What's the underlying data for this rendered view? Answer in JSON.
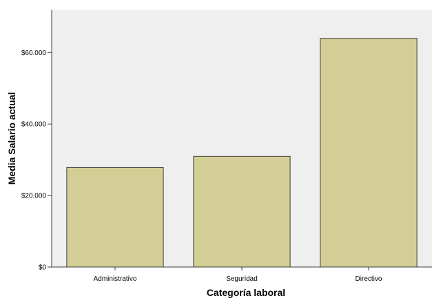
{
  "chart_data": {
    "type": "bar",
    "categories": [
      "Administrativo",
      "Seguridad",
      "Directivo"
    ],
    "values": [
      27838.54,
      30938.89,
      63977.8
    ],
    "xlabel": "Categoría laboral",
    "ylabel": "Media Salario actual",
    "ylim": [
      0,
      72000
    ],
    "y_ticks": [
      0,
      20000,
      40000,
      60000
    ],
    "y_tick_labels": [
      "$0",
      "$20.000",
      "$40.000",
      "$60.000"
    ],
    "grid": false,
    "colors": {
      "plot_background": "#efefef",
      "bar_fill": "#d3ce95",
      "bar_stroke": "#3c3c3c",
      "axis": "#3c3c3c"
    }
  }
}
